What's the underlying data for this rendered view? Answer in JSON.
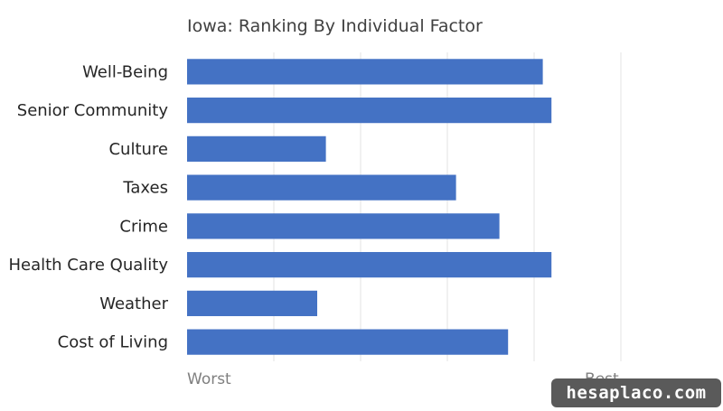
{
  "chart_data": {
    "type": "bar",
    "orientation": "horizontal",
    "title": "Iowa: Ranking By Individual Factor",
    "categories": [
      "Well-Being",
      "Senior Community",
      "Culture",
      "Taxes",
      "Crime",
      "Health Care Quality",
      "Weather",
      "Cost of Living"
    ],
    "values": [
      82,
      84,
      32,
      62,
      72,
      84,
      30,
      74
    ],
    "xlim": [
      0,
      100
    ],
    "x_tick_labels": [
      {
        "value": 0,
        "label": "Worst"
      },
      {
        "value": 100,
        "label": "Best"
      }
    ],
    "grid": true,
    "bar_color": "#4472c4",
    "grid_color": "#e3e3e3"
  },
  "watermark": "hesaplaco.com"
}
